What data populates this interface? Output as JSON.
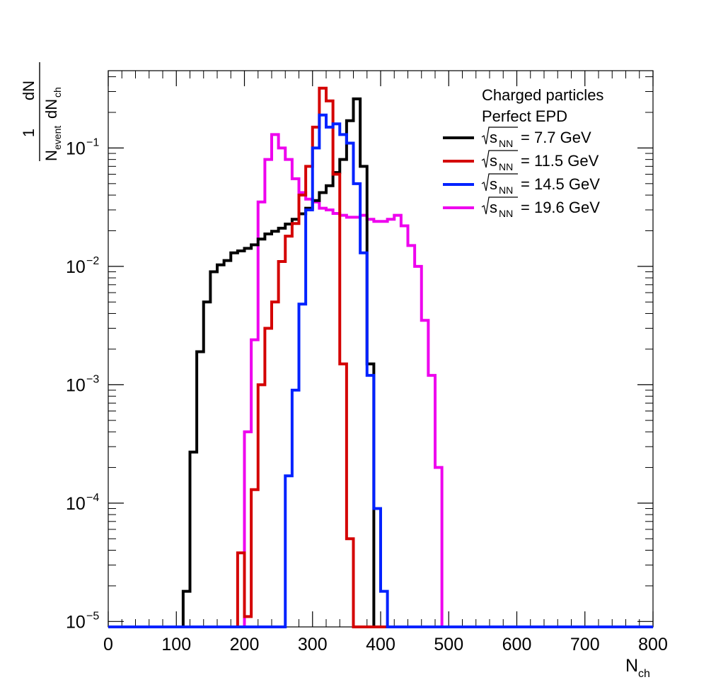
{
  "chart_data": {
    "type": "line",
    "histogram_style": "step",
    "xlabel": {
      "main": "N",
      "sub": "ch"
    },
    "ylabel": {
      "numerator": "1",
      "numerator2": "dN",
      "den_a": "N",
      "den_a_sub": "event",
      "den_b": "dN",
      "den_b_sub": "ch"
    },
    "xlim": [
      0,
      800
    ],
    "ylim": [
      9e-06,
      0.45
    ],
    "yscale": "log",
    "grid": false,
    "legend_position": "top-right",
    "x_ticks": [
      "0",
      "100",
      "200",
      "300",
      "400",
      "500",
      "600",
      "700",
      "800"
    ],
    "y_ticks": [
      {
        "base": "10",
        "exp": "−1"
      },
      {
        "base": "10",
        "exp": "−2"
      },
      {
        "base": "10",
        "exp": "−3"
      },
      {
        "base": "10",
        "exp": "−4"
      },
      {
        "base": "10",
        "exp": "−5"
      }
    ],
    "legend_header": [
      "Charged particles",
      "Perfect EPD"
    ],
    "bin_width": 10,
    "series": [
      {
        "label_sub": "NN",
        "label_sqrt": "s",
        "label_value": "= 7.7 GeV",
        "color": "#000000",
        "x_start": 110,
        "values": [
          1.8e-05,
          0.00027,
          0.0019,
          0.005,
          0.009,
          0.0103,
          0.0112,
          0.013,
          0.0135,
          0.0142,
          0.0152,
          0.017,
          0.0188,
          0.0198,
          0.021,
          0.0228,
          0.025,
          0.0278,
          0.031,
          0.036,
          0.042,
          0.048,
          0.062,
          0.08,
          0.17,
          0.26,
          0.07,
          0.0015,
          9e-06
        ]
      },
      {
        "label_sub": "NN",
        "label_sqrt": "s",
        "label_value": "= 11.5 GeV",
        "color": "#d40000",
        "x_start": 190,
        "values": [
          3.8e-05,
          1.1e-05,
          0.00013,
          0.001,
          0.003,
          0.005,
          0.011,
          0.018,
          0.023,
          0.04,
          0.07,
          0.15,
          0.32,
          0.25,
          0.06,
          0.0015,
          5e-05,
          9e-06
        ]
      },
      {
        "label_sub": "NN",
        "label_sqrt": "s",
        "label_value": "= 14.5 GeV",
        "color": "#0022ff",
        "x_start": 260,
        "values": [
          0.00017,
          0.0009,
          0.0048,
          0.03,
          0.1,
          0.19,
          0.15,
          0.16,
          0.13,
          0.11,
          0.05,
          0.013,
          0.0012,
          9e-05,
          1.8e-05,
          9e-06
        ]
      },
      {
        "label_sub": "NN",
        "label_sqrt": "s",
        "label_value": "= 19.6 GeV",
        "color": "#ee00ee",
        "x_start": 200,
        "values": [
          0.0004,
          0.0024,
          0.035,
          0.08,
          0.13,
          0.1,
          0.08,
          0.055,
          0.042,
          0.037,
          0.035,
          0.031,
          0.03,
          0.028,
          0.027,
          0.026,
          0.026,
          0.027,
          0.025,
          0.024,
          0.024,
          0.025,
          0.027,
          0.022,
          0.015,
          0.01,
          0.0035,
          0.0012,
          0.0002
        ]
      }
    ]
  }
}
